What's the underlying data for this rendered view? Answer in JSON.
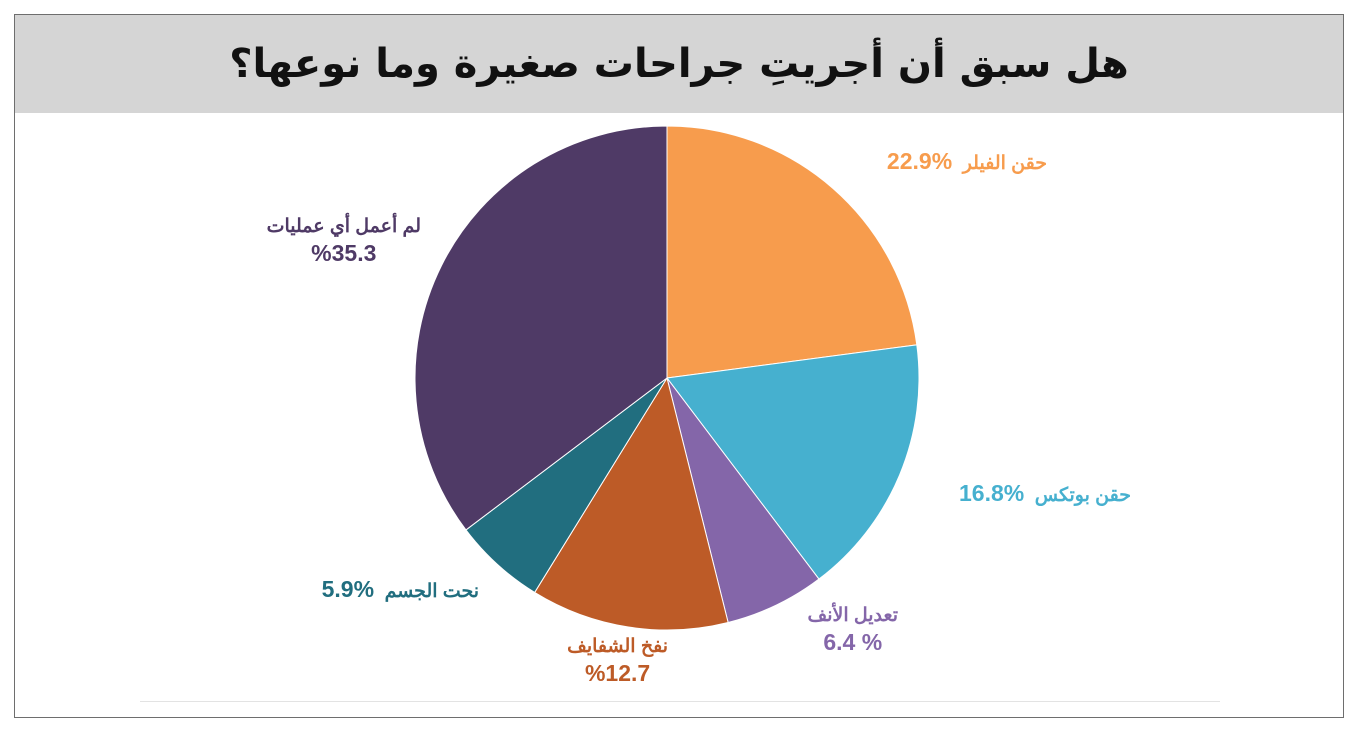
{
  "title": "هل سبق أن أجريتِ جراحات صغيرة وما نوعها؟",
  "labels": {
    "filler_name": "حقن الفيلر",
    "filler_value": "%22.9",
    "botox_name": "حقن بوتكس",
    "botox_value": "%16.8",
    "nose_name": "تعديل الأنف",
    "nose_value": "6.4 %",
    "lips_name": "نفخ الشفايف",
    "lips_value": "%12.7",
    "body_name": "نحت الجسم",
    "body_value": "%5.9",
    "none_name": "لم أعمل أي عمليات",
    "none_value": "%35.3"
  },
  "chart_data": {
    "type": "pie",
    "title": "هل سبق أن أجريتِ جراحات صغيرة وما نوعها؟",
    "start": "top",
    "direction": "clockwise",
    "legend": "none",
    "slices": [
      {
        "label": "حقن الفيلر",
        "value": 22.9,
        "color": "#f79c4d"
      },
      {
        "label": "حقن بوتكس",
        "value": 16.8,
        "color": "#46b0cf"
      },
      {
        "label": "تعديل الأنف",
        "value": 6.4,
        "color": "#8466a9"
      },
      {
        "label": "نفخ الشفايف",
        "value": 12.7,
        "color": "#bd5b27"
      },
      {
        "label": "نحت الجسم",
        "value": 5.9,
        "color": "#216e7f"
      },
      {
        "label": "لم أعمل أي عمليات",
        "value": 35.3,
        "color": "#4f3a66"
      }
    ]
  }
}
